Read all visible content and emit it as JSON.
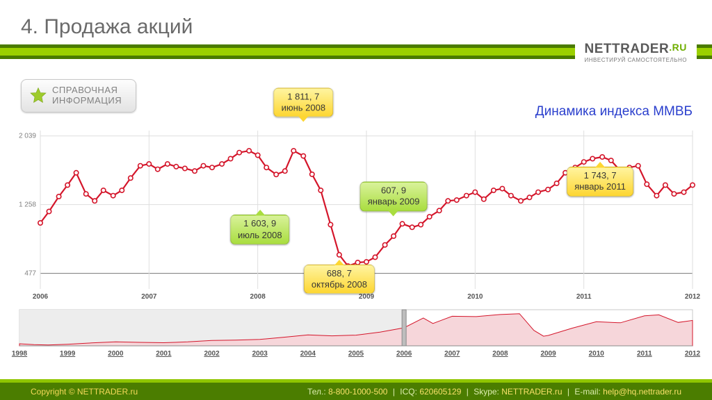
{
  "header": {
    "title": "4. Продажа акций",
    "stripe_colors": {
      "dark": "#4a7b00",
      "light": "#9bd000"
    }
  },
  "logo": {
    "brand_prefix": "NET",
    "brand_main": "TRADER",
    "brand_suffix": ".RU",
    "tagline": "ИНВЕСТИРУЙ САМОСТОЯТЕЛЬНО"
  },
  "badge": {
    "line1": "СПРАВОЧНАЯ",
    "line2": "ИНФОРМАЦИЯ",
    "star_color": "#9ecb2c"
  },
  "chart_caption": "Динамика индекса ММВБ",
  "main_chart": {
    "type": "line",
    "x_years": [
      "2006",
      "2007",
      "2008",
      "2009",
      "2010",
      "2011",
      "2012"
    ],
    "x_range": [
      2006.0,
      2012.0
    ],
    "y_ticks": [
      477,
      1258,
      2039
    ],
    "y_tick_labels": [
      "477",
      "1 258",
      "2 039"
    ],
    "ylim": [
      300,
      2100
    ],
    "line_color": "#d4152a",
    "marker_color": "#ffffff",
    "marker_stroke": "#d4152a",
    "marker_radius": 3.2,
    "line_width": 2.2,
    "grid_color": "#dedede",
    "background_color": "#ffffff",
    "points": [
      [
        2006.0,
        1050
      ],
      [
        2006.08,
        1180
      ],
      [
        2006.17,
        1350
      ],
      [
        2006.25,
        1480
      ],
      [
        2006.33,
        1620
      ],
      [
        2006.42,
        1380
      ],
      [
        2006.5,
        1300
      ],
      [
        2006.58,
        1420
      ],
      [
        2006.67,
        1360
      ],
      [
        2006.75,
        1420
      ],
      [
        2006.83,
        1560
      ],
      [
        2006.92,
        1700
      ],
      [
        2007.0,
        1720
      ],
      [
        2007.08,
        1660
      ],
      [
        2007.17,
        1720
      ],
      [
        2007.25,
        1690
      ],
      [
        2007.33,
        1670
      ],
      [
        2007.42,
        1640
      ],
      [
        2007.5,
        1700
      ],
      [
        2007.58,
        1680
      ],
      [
        2007.67,
        1720
      ],
      [
        2007.75,
        1780
      ],
      [
        2007.83,
        1850
      ],
      [
        2007.92,
        1870
      ],
      [
        2008.0,
        1820
      ],
      [
        2008.08,
        1680
      ],
      [
        2008.17,
        1600
      ],
      [
        2008.25,
        1640
      ],
      [
        2008.33,
        1870
      ],
      [
        2008.42,
        1811
      ],
      [
        2008.5,
        1603
      ],
      [
        2008.58,
        1420
      ],
      [
        2008.67,
        1030
      ],
      [
        2008.75,
        688
      ],
      [
        2008.83,
        560
      ],
      [
        2008.92,
        600
      ],
      [
        2009.0,
        607
      ],
      [
        2009.08,
        660
      ],
      [
        2009.17,
        800
      ],
      [
        2009.25,
        900
      ],
      [
        2009.33,
        1040
      ],
      [
        2009.42,
        1000
      ],
      [
        2009.5,
        1030
      ],
      [
        2009.58,
        1120
      ],
      [
        2009.67,
        1190
      ],
      [
        2009.75,
        1300
      ],
      [
        2009.83,
        1310
      ],
      [
        2009.92,
        1360
      ],
      [
        2010.0,
        1400
      ],
      [
        2010.08,
        1320
      ],
      [
        2010.17,
        1420
      ],
      [
        2010.25,
        1440
      ],
      [
        2010.33,
        1360
      ],
      [
        2010.42,
        1300
      ],
      [
        2010.5,
        1340
      ],
      [
        2010.58,
        1400
      ],
      [
        2010.67,
        1430
      ],
      [
        2010.75,
        1500
      ],
      [
        2010.83,
        1620
      ],
      [
        2010.92,
        1680
      ],
      [
        2011.0,
        1743
      ],
      [
        2011.08,
        1780
      ],
      [
        2011.17,
        1800
      ],
      [
        2011.25,
        1760
      ],
      [
        2011.33,
        1650
      ],
      [
        2011.42,
        1680
      ],
      [
        2011.5,
        1700
      ],
      [
        2011.58,
        1490
      ],
      [
        2011.67,
        1360
      ],
      [
        2011.75,
        1480
      ],
      [
        2011.83,
        1380
      ],
      [
        2011.92,
        1400
      ],
      [
        2012.0,
        1480
      ]
    ]
  },
  "callouts": [
    {
      "text_l1": "1 811, 7",
      "text_l2": "июнь 2008",
      "style": "yellow",
      "tail": "down",
      "at_x": 2008.42,
      "y_offset": -56
    },
    {
      "text_l1": "1 603, 9",
      "text_l2": "июль 2008",
      "style": "green",
      "tail": "up",
      "at_x": 2008.02,
      "y_offset": 86
    },
    {
      "text_l1": "688, 7",
      "text_l2": "октябрь 2008",
      "style": "yellow",
      "tail": "up",
      "at_x": 2008.75,
      "y_offset": 14
    },
    {
      "text_l1": "607, 9",
      "text_l2": "январь 2009",
      "style": "green",
      "tail": "down",
      "at_x": 2009.25,
      "y_offset": -36
    },
    {
      "text_l1": "1 743, 7",
      "text_l2": "январь 2011",
      "style": "yellow",
      "tail": "up",
      "at_x": 2011.15,
      "y_offset": 14
    }
  ],
  "overview_chart": {
    "type": "area",
    "x_years": [
      "1998",
      "1999",
      "2000",
      "2001",
      "2002",
      "2003",
      "2004",
      "2005",
      "2006",
      "2007",
      "2008",
      "2009",
      "2010",
      "2011",
      "2012"
    ],
    "x_range": [
      1998.0,
      2012.0
    ],
    "ylim": [
      0,
      2100
    ],
    "fill_color": "#f6d6da",
    "stroke_color": "#d4152a",
    "selection_range": [
      1998.0,
      2006.0
    ],
    "selection_fill": "#ededed",
    "border_color": "#c8c8c8",
    "points": [
      [
        1998.0,
        120
      ],
      [
        1998.3,
        70
      ],
      [
        1998.6,
        50
      ],
      [
        1999.0,
        90
      ],
      [
        1999.5,
        170
      ],
      [
        2000.0,
        230
      ],
      [
        2000.5,
        200
      ],
      [
        2001.0,
        180
      ],
      [
        2001.5,
        230
      ],
      [
        2002.0,
        310
      ],
      [
        2002.5,
        330
      ],
      [
        2003.0,
        370
      ],
      [
        2003.5,
        500
      ],
      [
        2004.0,
        640
      ],
      [
        2004.5,
        580
      ],
      [
        2005.0,
        620
      ],
      [
        2005.5,
        800
      ],
      [
        2006.0,
        1050
      ],
      [
        2006.4,
        1620
      ],
      [
        2006.6,
        1300
      ],
      [
        2007.0,
        1720
      ],
      [
        2007.5,
        1700
      ],
      [
        2008.0,
        1820
      ],
      [
        2008.4,
        1870
      ],
      [
        2008.7,
        900
      ],
      [
        2008.9,
        560
      ],
      [
        2009.0,
        607
      ],
      [
        2009.5,
        1030
      ],
      [
        2010.0,
        1400
      ],
      [
        2010.5,
        1340
      ],
      [
        2011.0,
        1743
      ],
      [
        2011.3,
        1800
      ],
      [
        2011.7,
        1360
      ],
      [
        2012.0,
        1480
      ]
    ]
  },
  "footer": {
    "copyright": "Copyright © NETTRADER.ru",
    "items": [
      {
        "label": "Тел.:",
        "value": "8-800-1000-500"
      },
      {
        "label": "ICQ:",
        "value": "620605129"
      },
      {
        "label": "Skype:",
        "value": "NETTRADER.ru"
      },
      {
        "label": "E-mail:",
        "value": "help@hq.nettrader.ru"
      }
    ],
    "bg_color": "#4b7d00",
    "accent_color": "#90c500",
    "text_color": "#f8e06a"
  }
}
